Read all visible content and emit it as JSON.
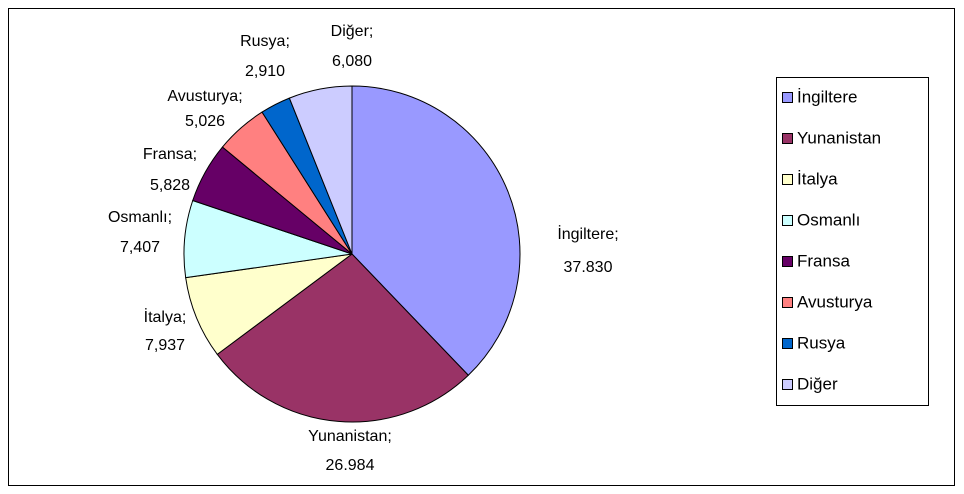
{
  "chart_data": {
    "type": "pie",
    "categories": [
      "İngiltere",
      "Yunanistan",
      "İtalya",
      "Osmanlı",
      "Fransa",
      "Avusturya",
      "Rusya",
      "Diğer"
    ],
    "values": [
      37.83,
      26.984,
      7.937,
      7.407,
      5.828,
      5.026,
      2.91,
      6.08
    ],
    "value_labels": [
      "37.830",
      "26.984",
      "7,937",
      "7,407",
      "5,828",
      "5,026",
      "2,910",
      "6,080"
    ],
    "label_separator": ";",
    "colors": [
      "#9999ff",
      "#993366",
      "#ffffcc",
      "#ccffff",
      "#660066",
      "#ff8080",
      "#0066cc",
      "#ccccff"
    ],
    "legend": "right"
  }
}
